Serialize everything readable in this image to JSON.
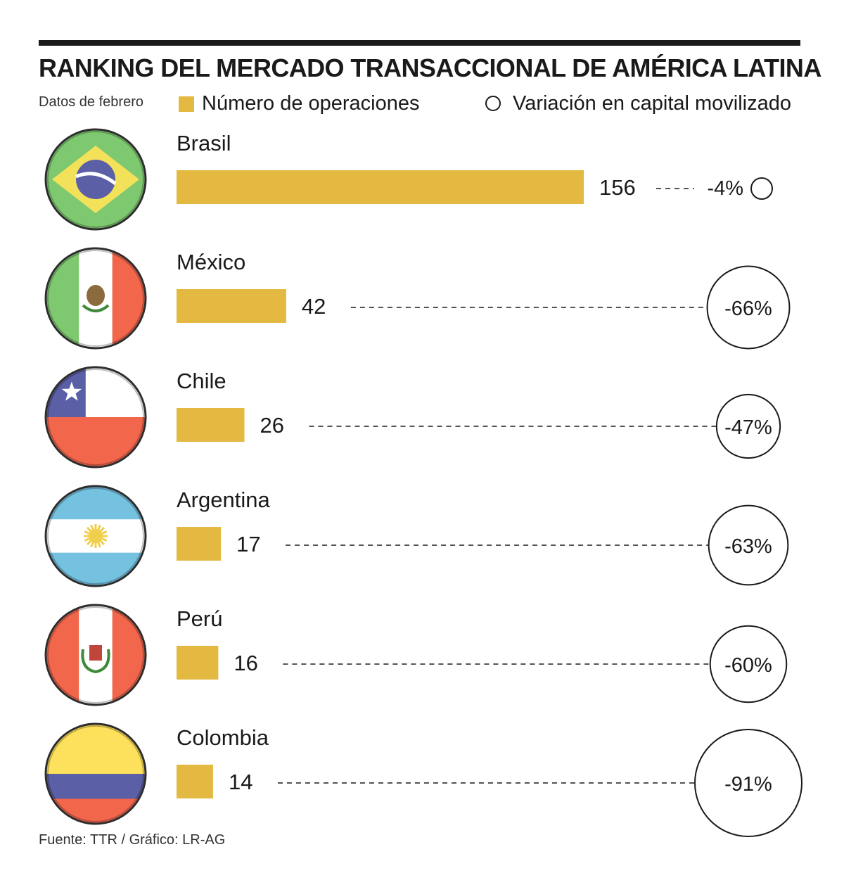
{
  "title": "RANKING DEL MERCADO TRANSACCIONAL DE AMÉRICA LATINA",
  "subtitle": "Datos de febrero",
  "legend": {
    "bar_label": "Número de operaciones",
    "circle_label": "Variación en capital movilizado"
  },
  "colors": {
    "bar": "#E3B941",
    "text": "#1a1a1a",
    "rule": "#1a1a1a"
  },
  "source": "Fuente: TTR / Gráfico: LR-AG",
  "chart_data": {
    "type": "bar",
    "orientation": "horizontal",
    "title": "RANKING DEL MERCADO TRANSACCIONAL DE AMÉRICA LATINA",
    "categories": [
      "Brasil",
      "México",
      "Chile",
      "Argentina",
      "Perú",
      "Colombia"
    ],
    "series": [
      {
        "name": "Número de operaciones",
        "values": [
          156,
          42,
          26,
          17,
          16,
          14
        ]
      },
      {
        "name": "Variación en capital movilizado",
        "values": [
          -4,
          -66,
          -47,
          -63,
          -60,
          -91
        ],
        "labels": [
          "-4%",
          "-66%",
          "-47%",
          "-63%",
          "-60%",
          "-91%"
        ],
        "unit": "%"
      }
    ],
    "flags": [
      "brazil-flag-icon",
      "mexico-flag-icon",
      "chile-flag-icon",
      "argentina-flag-icon",
      "peru-flag-icon",
      "colombia-flag-icon"
    ],
    "xlim": [
      0,
      156
    ]
  }
}
